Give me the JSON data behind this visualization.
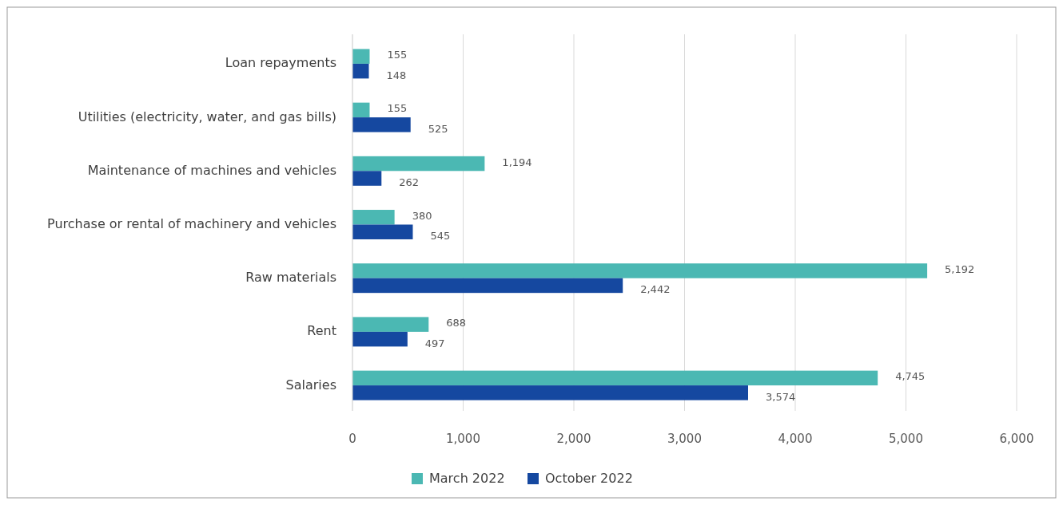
{
  "chart_data": {
    "type": "bar",
    "orientation": "horizontal",
    "categories": [
      "Loan repayments",
      "Utilities (electricity, water, and gas bills)",
      "Maintenance of machines and vehicles",
      "Purchase or rental of machinery and vehicles",
      "Raw materials",
      "Rent",
      "Salaries"
    ],
    "series": [
      {
        "name": "March 2022",
        "color": "#4bb8b3",
        "values": [
          155,
          155,
          1194,
          380,
          5192,
          688,
          4745
        ],
        "value_labels": [
          "155",
          "155",
          "1,194",
          "380",
          "5,192",
          "688",
          "4,745"
        ]
      },
      {
        "name": "October 2022",
        "color": "#1548a0",
        "values": [
          148,
          525,
          262,
          545,
          2442,
          497,
          3574
        ],
        "value_labels": [
          "148",
          "525",
          "262",
          "545",
          "2,442",
          "497",
          "3,574"
        ]
      }
    ],
    "xlim": [
      0,
      6000
    ],
    "xticks": [
      0,
      {
        "value": 1000,
        "label": "1,000"
      },
      {
        "value": 2000,
        "label": "2,000"
      },
      {
        "value": 3000,
        "label": "3,000"
      },
      {
        "value": 4000,
        "label": "4,000"
      },
      {
        "value": 5000,
        "label": "5,000"
      },
      {
        "value": 6000,
        "label": "6,000"
      }
    ],
    "grid": "x",
    "legend": "bottom"
  }
}
